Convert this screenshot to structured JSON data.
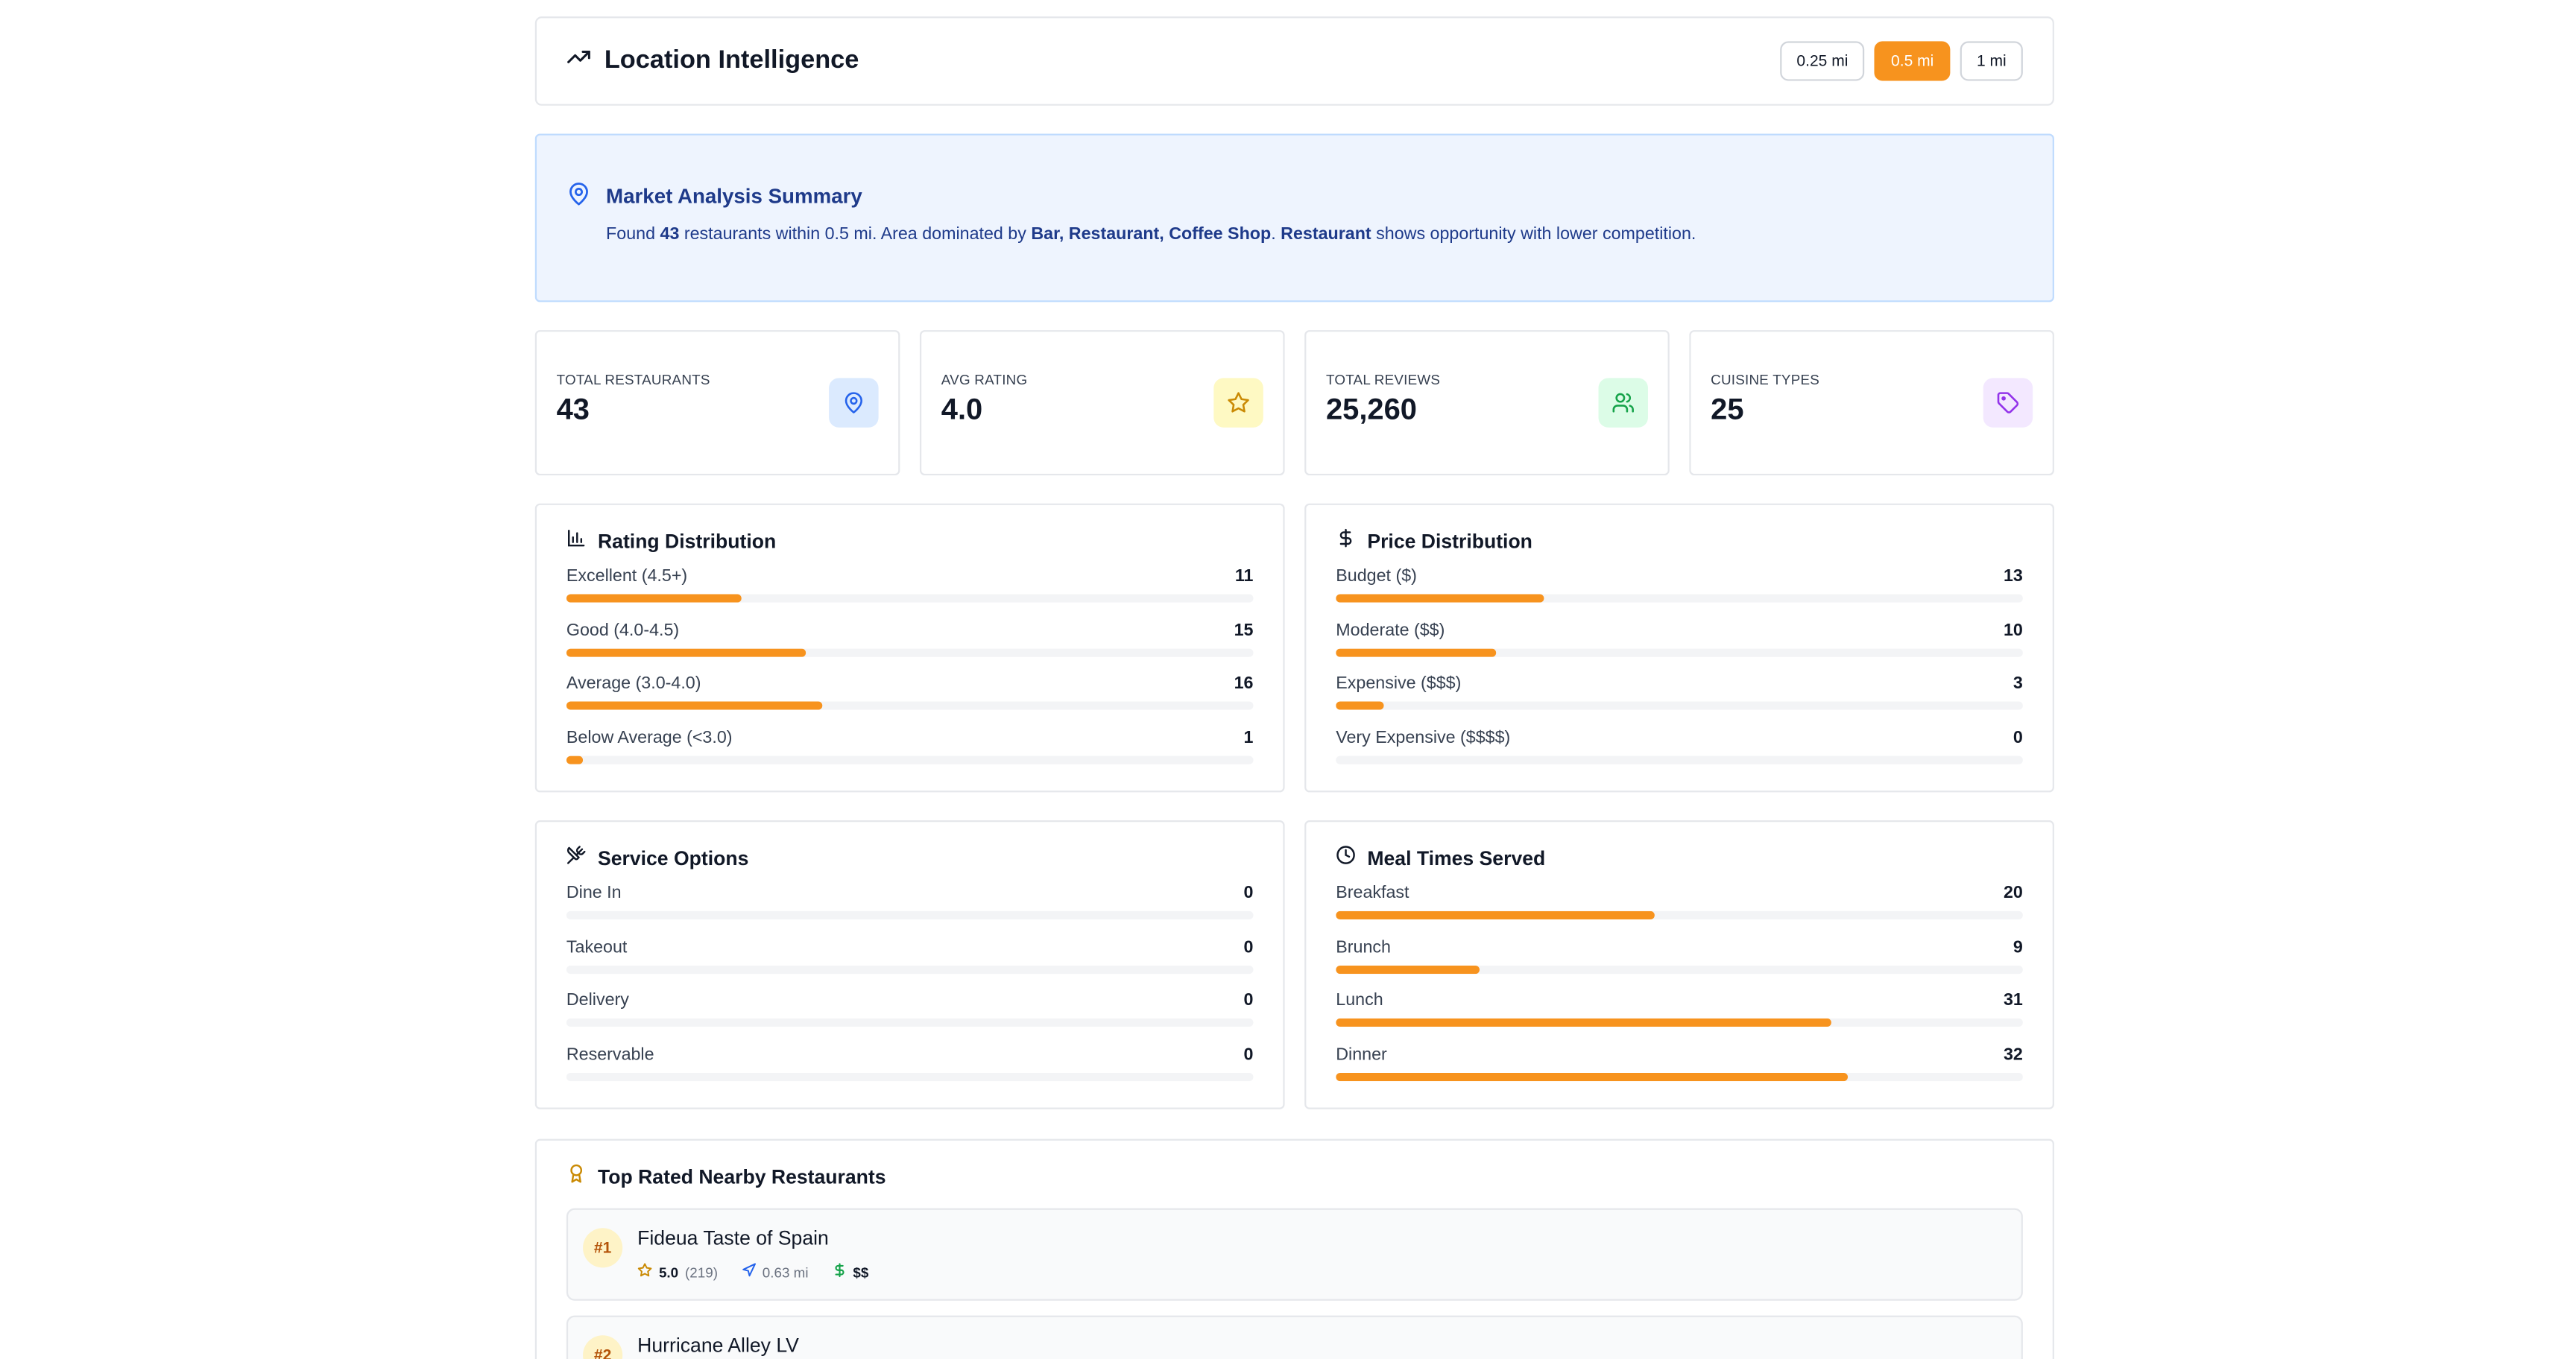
{
  "header": {
    "title": "Location Intelligence",
    "radius_options": [
      {
        "label": "0.25 mi",
        "active": false
      },
      {
        "label": "0.5 mi",
        "active": true
      },
      {
        "label": "1 mi",
        "active": false
      }
    ]
  },
  "summary": {
    "title": "Market Analysis Summary",
    "t1": "Found ",
    "count": "43",
    "t2": " restaurants within 0.5 mi. Area dominated by ",
    "dominant": "Bar, Restaurant, Coffee Shop",
    "t3": ". ",
    "opportunity": "Restaurant",
    "t4": " shows opportunity with lower competition."
  },
  "stats": [
    {
      "label": "TOTAL RESTAURANTS",
      "value": "43",
      "icon": "map-pin-icon",
      "color": "#2563eb",
      "bg": "#dbeafe"
    },
    {
      "label": "AVG RATING",
      "value": "4.0",
      "icon": "star-icon",
      "color": "#ca8a04",
      "bg": "#fef9c3"
    },
    {
      "label": "TOTAL REVIEWS",
      "value": "25,260",
      "icon": "users-icon",
      "color": "#16a34a",
      "bg": "#dcfce7"
    },
    {
      "label": "CUISINE TYPES",
      "value": "25",
      "icon": "tag-icon",
      "color": "#9333ea",
      "bg": "#f3e8ff"
    }
  ],
  "accent": "#f7931e",
  "rating_distribution": {
    "title": "Rating Distribution",
    "max": 43,
    "rows": [
      {
        "label": "Excellent (4.5+)",
        "count": 11
      },
      {
        "label": "Good (4.0-4.5)",
        "count": 15
      },
      {
        "label": "Average (3.0-4.0)",
        "count": 16
      },
      {
        "label": "Below Average (<3.0)",
        "count": 1
      }
    ]
  },
  "price_distribution": {
    "title": "Price Distribution",
    "max": 43,
    "rows": [
      {
        "label": "Budget ($)",
        "count": 13
      },
      {
        "label": "Moderate ($$)",
        "count": 10
      },
      {
        "label": "Expensive ($$$)",
        "count": 3
      },
      {
        "label": "Very Expensive ($$$$)",
        "count": 0
      }
    ]
  },
  "service_options": {
    "title": "Service Options",
    "max": 43,
    "rows": [
      {
        "label": "Dine In",
        "count": 0
      },
      {
        "label": "Takeout",
        "count": 0
      },
      {
        "label": "Delivery",
        "count": 0
      },
      {
        "label": "Reservable",
        "count": 0
      }
    ]
  },
  "meal_times": {
    "title": "Meal Times Served",
    "max": 43,
    "rows": [
      {
        "label": "Breakfast",
        "count": 20
      },
      {
        "label": "Brunch",
        "count": 9
      },
      {
        "label": "Lunch",
        "count": 31
      },
      {
        "label": "Dinner",
        "count": 32
      }
    ]
  },
  "top_rated": {
    "title": "Top Rated Nearby Restaurants",
    "items": [
      {
        "rank": "#1",
        "name": "Fideua Taste of Spain",
        "rating": "5.0",
        "reviews": "(219)",
        "distance": "0.63 mi",
        "price": "$$"
      },
      {
        "rank": "#2",
        "name": "Hurricane Alley LV",
        "rating": "",
        "reviews": "",
        "distance": "",
        "price": ""
      }
    ]
  }
}
